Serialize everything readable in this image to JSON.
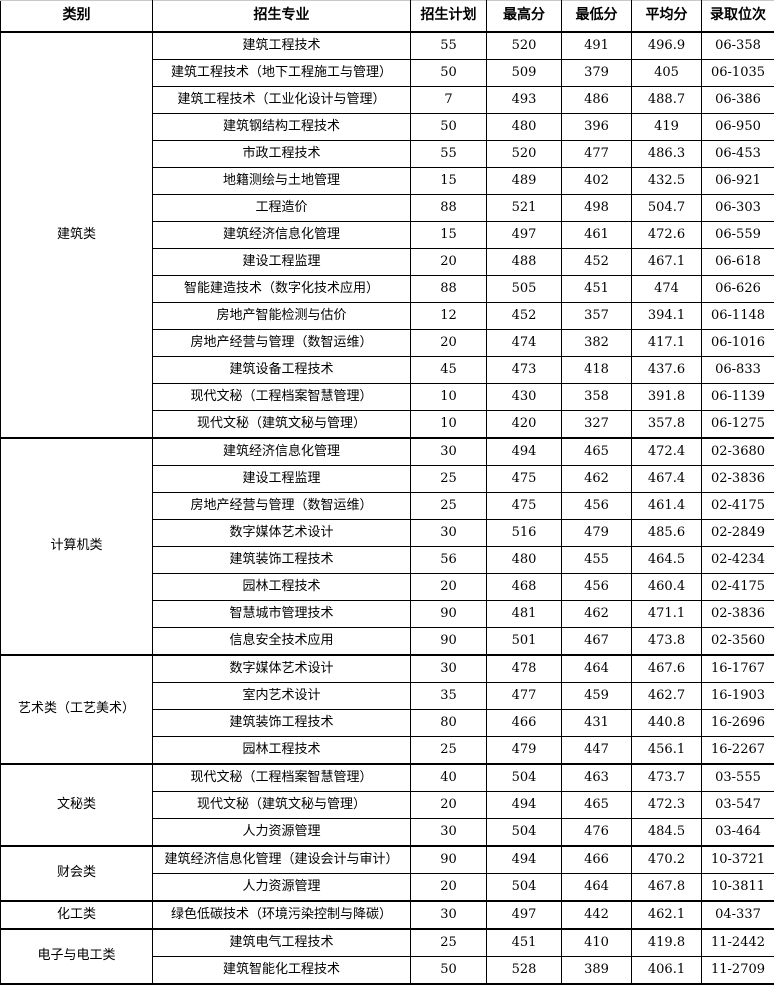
{
  "table": {
    "headers": [
      "类别",
      "招生专业",
      "招生计划",
      "最高分",
      "最低分",
      "平均分",
      "录取位次"
    ],
    "groups": [
      {
        "category": "建筑类",
        "rows": [
          {
            "major": "建筑工程技术",
            "plan": "55",
            "max": "520",
            "min": "491",
            "avg": "496.9",
            "rank": "06-358"
          },
          {
            "major": "建筑工程技术（地下工程施工与管理）",
            "plan": "50",
            "max": "509",
            "min": "379",
            "avg": "405",
            "rank": "06-1035"
          },
          {
            "major": "建筑工程技术（工业化设计与管理）",
            "plan": "7",
            "max": "493",
            "min": "486",
            "avg": "488.7",
            "rank": "06-386"
          },
          {
            "major": "建筑钢结构工程技术",
            "plan": "50",
            "max": "480",
            "min": "396",
            "avg": "419",
            "rank": "06-950"
          },
          {
            "major": "市政工程技术",
            "plan": "55",
            "max": "520",
            "min": "477",
            "avg": "486.3",
            "rank": "06-453"
          },
          {
            "major": "地籍测绘与土地管理",
            "plan": "15",
            "max": "489",
            "min": "402",
            "avg": "432.5",
            "rank": "06-921"
          },
          {
            "major": "工程造价",
            "plan": "88",
            "max": "521",
            "min": "498",
            "avg": "504.7",
            "rank": "06-303"
          },
          {
            "major": "建筑经济信息化管理",
            "plan": "15",
            "max": "497",
            "min": "461",
            "avg": "472.6",
            "rank": "06-559"
          },
          {
            "major": "建设工程监理",
            "plan": "20",
            "max": "488",
            "min": "452",
            "avg": "467.1",
            "rank": "06-618"
          },
          {
            "major": "智能建造技术（数字化技术应用）",
            "plan": "88",
            "max": "505",
            "min": "451",
            "avg": "474",
            "rank": "06-626"
          },
          {
            "major": "房地产智能检测与估价",
            "plan": "12",
            "max": "452",
            "min": "357",
            "avg": "394.1",
            "rank": "06-1148"
          },
          {
            "major": "房地产经营与管理（数智运维）",
            "plan": "20",
            "max": "474",
            "min": "382",
            "avg": "417.1",
            "rank": "06-1016"
          },
          {
            "major": "建筑设备工程技术",
            "plan": "45",
            "max": "473",
            "min": "418",
            "avg": "437.6",
            "rank": "06-833"
          },
          {
            "major": "现代文秘（工程档案智慧管理）",
            "plan": "10",
            "max": "430",
            "min": "358",
            "avg": "391.8",
            "rank": "06-1139"
          },
          {
            "major": "现代文秘（建筑文秘与管理）",
            "plan": "10",
            "max": "420",
            "min": "327",
            "avg": "357.8",
            "rank": "06-1275"
          }
        ]
      },
      {
        "category": "计算机类",
        "rows": [
          {
            "major": "建筑经济信息化管理",
            "plan": "30",
            "max": "494",
            "min": "465",
            "avg": "472.4",
            "rank": "02-3680"
          },
          {
            "major": "建设工程监理",
            "plan": "25",
            "max": "475",
            "min": "462",
            "avg": "467.4",
            "rank": "02-3836"
          },
          {
            "major": "房地产经营与管理（数智运维）",
            "plan": "25",
            "max": "475",
            "min": "456",
            "avg": "461.4",
            "rank": "02-4175"
          },
          {
            "major": "数字媒体艺术设计",
            "plan": "30",
            "max": "516",
            "min": "479",
            "avg": "485.6",
            "rank": "02-2849"
          },
          {
            "major": "建筑装饰工程技术",
            "plan": "56",
            "max": "480",
            "min": "455",
            "avg": "464.5",
            "rank": "02-4234"
          },
          {
            "major": "园林工程技术",
            "plan": "20",
            "max": "468",
            "min": "456",
            "avg": "460.4",
            "rank": "02-4175"
          },
          {
            "major": "智慧城市管理技术",
            "plan": "90",
            "max": "481",
            "min": "462",
            "avg": "471.1",
            "rank": "02-3836"
          },
          {
            "major": "信息安全技术应用",
            "plan": "90",
            "max": "501",
            "min": "467",
            "avg": "473.8",
            "rank": "02-3560"
          }
        ]
      },
      {
        "category": "艺术类（工艺美术）",
        "rows": [
          {
            "major": "数字媒体艺术设计",
            "plan": "30",
            "max": "478",
            "min": "464",
            "avg": "467.6",
            "rank": "16-1767"
          },
          {
            "major": "室内艺术设计",
            "plan": "35",
            "max": "477",
            "min": "459",
            "avg": "462.7",
            "rank": "16-1903"
          },
          {
            "major": "建筑装饰工程技术",
            "plan": "80",
            "max": "466",
            "min": "431",
            "avg": "440.8",
            "rank": "16-2696"
          },
          {
            "major": "园林工程技术",
            "plan": "25",
            "max": "479",
            "min": "447",
            "avg": "456.1",
            "rank": "16-2267"
          }
        ]
      },
      {
        "category": "文秘类",
        "rows": [
          {
            "major": "现代文秘（工程档案智慧管理）",
            "plan": "40",
            "max": "504",
            "min": "463",
            "avg": "473.7",
            "rank": "03-555"
          },
          {
            "major": "现代文秘（建筑文秘与管理）",
            "plan": "20",
            "max": "494",
            "min": "465",
            "avg": "472.3",
            "rank": "03-547"
          },
          {
            "major": "人力资源管理",
            "plan": "30",
            "max": "504",
            "min": "476",
            "avg": "484.5",
            "rank": "03-464"
          }
        ]
      },
      {
        "category": "财会类",
        "rows": [
          {
            "major": "建筑经济信息化管理（建设会计与审计）",
            "plan": "90",
            "max": "494",
            "min": "466",
            "avg": "470.2",
            "rank": "10-3721"
          },
          {
            "major": "人力资源管理",
            "plan": "20",
            "max": "504",
            "min": "464",
            "avg": "467.8",
            "rank": "10-3811"
          }
        ]
      },
      {
        "category": "化工类",
        "rows": [
          {
            "major": "绿色低碳技术（环境污染控制与降碳）",
            "plan": "30",
            "max": "497",
            "min": "442",
            "avg": "462.1",
            "rank": "04-337"
          }
        ]
      },
      {
        "category": "电子与电工类",
        "rows": [
          {
            "major": "建筑电气工程技术",
            "plan": "25",
            "max": "451",
            "min": "410",
            "avg": "419.8",
            "rank": "11-2442"
          },
          {
            "major": "建筑智能化工程技术",
            "plan": "50",
            "max": "528",
            "min": "389",
            "avg": "406.1",
            "rank": "11-2709"
          }
        ]
      }
    ]
  },
  "colors": {
    "border": "#000000",
    "text": "#000000",
    "background": "#ffffff"
  }
}
